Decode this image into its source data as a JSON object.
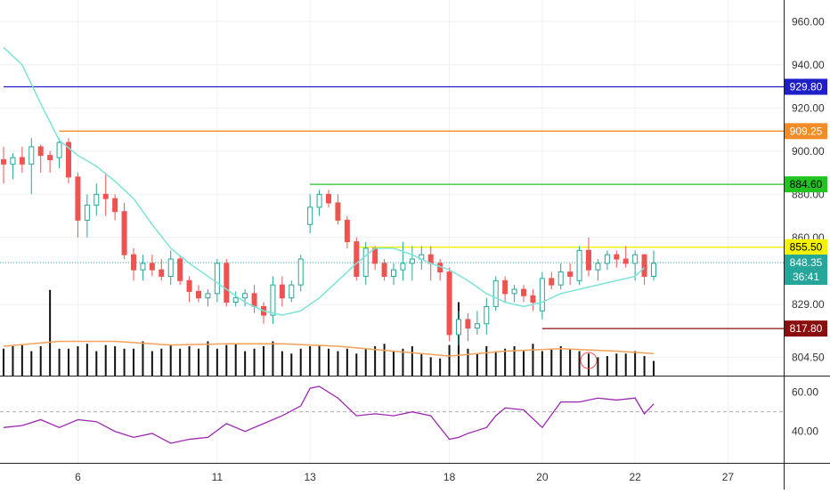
{
  "chart_data": {
    "type": "candlestick",
    "price_axis": {
      "ylim": [
        796,
        970
      ],
      "ticks": [
        "960.00",
        "940.00",
        "920.00",
        "900.00",
        "880.00",
        "860.00",
        "829.00",
        "804.50"
      ],
      "tick_values": [
        960,
        940,
        920,
        900,
        880,
        860,
        829,
        804.5
      ]
    },
    "rsi_axis": {
      "ylim": [
        24,
        68
      ],
      "ticks": [
        "60.00",
        "40.00"
      ],
      "tick_values": [
        60,
        40
      ],
      "midline": 50
    },
    "x_axis": {
      "xlim": [
        0,
        84
      ],
      "ticks": [
        "6",
        "11",
        "13",
        "18",
        "20",
        "22",
        "27"
      ],
      "tick_positions": [
        8,
        23,
        33,
        48,
        58,
        68,
        78
      ]
    },
    "horizontal_levels": [
      {
        "value": 929.8,
        "label": "929.80",
        "color": "#1f1fc8",
        "x_start": 0
      },
      {
        "value": 909.25,
        "label": "909.25",
        "color": "#f28c28",
        "x_start": 6
      },
      {
        "value": 884.6,
        "label": "884.60",
        "color": "#22c422",
        "x_start": 33
      },
      {
        "value": 855.5,
        "label": "855.50",
        "color": "#f2f200",
        "x_start": 38
      },
      {
        "value": 817.8,
        "label": "817.80",
        "color": "#8b0e0e",
        "x_start": 58
      }
    ],
    "last_price": {
      "value": 848.35,
      "label": "848.35",
      "countdown": "36:41",
      "color": "#26a69a"
    },
    "colors": {
      "up": "#26a69a",
      "down": "#ef5350",
      "ma": "#7de3d7",
      "volume": "#111111",
      "volume_ma": "#f5a05a",
      "rsi": "#9c27b0"
    },
    "candles": [
      [
        0,
        896,
        902,
        885,
        894
      ],
      [
        1,
        894,
        899,
        887,
        897
      ],
      [
        2,
        897,
        902,
        890,
        894
      ],
      [
        3,
        894,
        906,
        880,
        902
      ],
      [
        4,
        902,
        903,
        890,
        898
      ],
      [
        5,
        898,
        900,
        890,
        896
      ],
      [
        6,
        897,
        906,
        892,
        904
      ],
      [
        7,
        904,
        906,
        885,
        888
      ],
      [
        8,
        888,
        890,
        860,
        868
      ],
      [
        9,
        868,
        880,
        860,
        875
      ],
      [
        10,
        875,
        885,
        870,
        880
      ],
      [
        11,
        880,
        890,
        870,
        878
      ],
      [
        12,
        878,
        880,
        868,
        872
      ],
      [
        13,
        872,
        876,
        850,
        852
      ],
      [
        14,
        852,
        855,
        840,
        845
      ],
      [
        15,
        845,
        852,
        840,
        848
      ],
      [
        16,
        848,
        852,
        842,
        845
      ],
      [
        17,
        845,
        850,
        840,
        842
      ],
      [
        18,
        842,
        854,
        838,
        850
      ],
      [
        19,
        850,
        852,
        838,
        840
      ],
      [
        20,
        840,
        842,
        830,
        835
      ],
      [
        21,
        835,
        838,
        830,
        832
      ],
      [
        22,
        832,
        836,
        828,
        834
      ],
      [
        23,
        834,
        850,
        830,
        848
      ],
      [
        24,
        848,
        850,
        828,
        830
      ],
      [
        25,
        830,
        835,
        828,
        832
      ],
      [
        26,
        832,
        836,
        828,
        834
      ],
      [
        27,
        834,
        838,
        825,
        828
      ],
      [
        28,
        828,
        830,
        820,
        824
      ],
      [
        29,
        824,
        842,
        820,
        838
      ],
      [
        30,
        838,
        842,
        828,
        832
      ],
      [
        31,
        832,
        840,
        830,
        838
      ],
      [
        32,
        838,
        852,
        835,
        850
      ],
      [
        33,
        866,
        880,
        862,
        874
      ],
      [
        34,
        874,
        882,
        870,
        880
      ],
      [
        35,
        880,
        882,
        874,
        876
      ],
      [
        36,
        876,
        880,
        866,
        868
      ],
      [
        37,
        868,
        870,
        855,
        858
      ],
      [
        38,
        858,
        860,
        840,
        842
      ],
      [
        39,
        842,
        858,
        838,
        855
      ],
      [
        40,
        855,
        856,
        845,
        848
      ],
      [
        41,
        848,
        850,
        840,
        842
      ],
      [
        42,
        842,
        848,
        838,
        845
      ],
      [
        43,
        845,
        858,
        840,
        848
      ],
      [
        44,
        848,
        856,
        840,
        850
      ],
      [
        45,
        850,
        856,
        845,
        852
      ],
      [
        46,
        852,
        856,
        840,
        848
      ],
      [
        47,
        848,
        850,
        840,
        844
      ],
      [
        48,
        844,
        846,
        812,
        815
      ],
      [
        49,
        815,
        826,
        810,
        822
      ],
      [
        50,
        822,
        825,
        812,
        818
      ],
      [
        51,
        818,
        826,
        815,
        820
      ],
      [
        52,
        820,
        832,
        815,
        828
      ],
      [
        53,
        828,
        842,
        826,
        840
      ],
      [
        54,
        840,
        842,
        830,
        834
      ],
      [
        55,
        834,
        838,
        830,
        836
      ],
      [
        56,
        836,
        838,
        830,
        833
      ],
      [
        57,
        833,
        836,
        826,
        830
      ],
      [
        58,
        826,
        844,
        822,
        841
      ],
      [
        59,
        841,
        844,
        836,
        838
      ],
      [
        60,
        838,
        848,
        836,
        844
      ],
      [
        61,
        844,
        848,
        838,
        842
      ],
      [
        62,
        840,
        856,
        838,
        854
      ],
      [
        63,
        854,
        860,
        842,
        845
      ],
      [
        64,
        845,
        850,
        840,
        848
      ],
      [
        65,
        848,
        854,
        845,
        852
      ],
      [
        66,
        852,
        854,
        846,
        850
      ],
      [
        67,
        850,
        856,
        846,
        848
      ],
      [
        68,
        848,
        854,
        840,
        852
      ],
      [
        69,
        852,
        852,
        838,
        842
      ],
      [
        70,
        842,
        854,
        840,
        848
      ]
    ],
    "moving_average": [
      [
        0,
        948
      ],
      [
        2,
        940
      ],
      [
        4,
        922
      ],
      [
        6,
        905
      ],
      [
        8,
        898
      ],
      [
        10,
        893
      ],
      [
        12,
        886
      ],
      [
        14,
        878
      ],
      [
        16,
        866
      ],
      [
        18,
        855
      ],
      [
        20,
        848
      ],
      [
        22,
        842
      ],
      [
        24,
        836
      ],
      [
        26,
        830
      ],
      [
        28,
        826
      ],
      [
        30,
        824
      ],
      [
        32,
        826
      ],
      [
        34,
        832
      ],
      [
        36,
        840
      ],
      [
        38,
        848
      ],
      [
        40,
        855
      ],
      [
        42,
        855
      ],
      [
        44,
        852
      ],
      [
        46,
        848
      ],
      [
        48,
        845
      ],
      [
        50,
        840
      ],
      [
        52,
        834
      ],
      [
        54,
        830
      ],
      [
        56,
        828
      ],
      [
        58,
        830
      ],
      [
        60,
        834
      ],
      [
        62,
        836
      ],
      [
        64,
        838
      ],
      [
        66,
        840
      ],
      [
        68,
        842
      ],
      [
        69,
        846
      ]
    ],
    "volume": {
      "values": [
        22,
        24,
        25,
        20,
        24,
        70,
        22,
        22,
        24,
        26,
        20,
        25,
        24,
        22,
        22,
        28,
        20,
        22,
        25,
        22,
        24,
        22,
        28,
        22,
        25,
        26,
        20,
        22,
        24,
        28,
        20,
        18,
        22,
        24,
        25,
        22,
        20,
        22,
        18,
        22,
        24,
        26,
        20,
        22,
        24,
        18,
        15,
        14,
        25,
        60,
        22,
        18,
        24,
        20,
        22,
        24,
        20,
        26,
        20,
        22,
        24,
        22,
        20,
        18,
        15,
        16,
        18,
        18,
        20,
        16,
        12
      ],
      "ma": [
        [
          0,
          24
        ],
        [
          6,
          28
        ],
        [
          12,
          28
        ],
        [
          18,
          25
        ],
        [
          24,
          26
        ],
        [
          30,
          26
        ],
        [
          36,
          24
        ],
        [
          42,
          20
        ],
        [
          48,
          16
        ],
        [
          54,
          20
        ],
        [
          60,
          22
        ],
        [
          66,
          20
        ],
        [
          70,
          18
        ]
      ],
      "vmax": 80
    },
    "rsi": [
      [
        0,
        42
      ],
      [
        2,
        43
      ],
      [
        4,
        46
      ],
      [
        6,
        42
      ],
      [
        8,
        46
      ],
      [
        10,
        45
      ],
      [
        12,
        40
      ],
      [
        14,
        37
      ],
      [
        16,
        39
      ],
      [
        18,
        34
      ],
      [
        20,
        36
      ],
      [
        22,
        37
      ],
      [
        24,
        44
      ],
      [
        26,
        40
      ],
      [
        28,
        44
      ],
      [
        30,
        48
      ],
      [
        32,
        53
      ],
      [
        33,
        62
      ],
      [
        34,
        63
      ],
      [
        36,
        57
      ],
      [
        38,
        48
      ],
      [
        40,
        49
      ],
      [
        42,
        48
      ],
      [
        44,
        50
      ],
      [
        46,
        48
      ],
      [
        48,
        36
      ],
      [
        49,
        37
      ],
      [
        50,
        39
      ],
      [
        52,
        42
      ],
      [
        53,
        48
      ],
      [
        54,
        52
      ],
      [
        56,
        51
      ],
      [
        58,
        42
      ],
      [
        60,
        55
      ],
      [
        62,
        55
      ],
      [
        64,
        57
      ],
      [
        66,
        56
      ],
      [
        68,
        57
      ],
      [
        69,
        49
      ],
      [
        70,
        54
      ]
    ]
  }
}
